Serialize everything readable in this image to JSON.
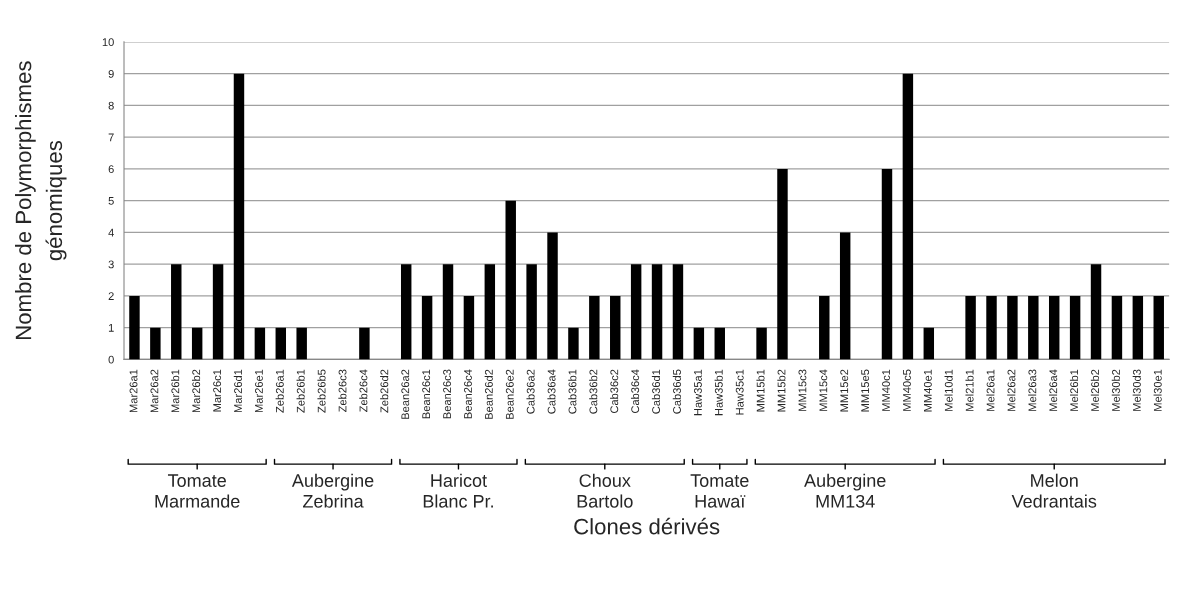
{
  "chart_data": {
    "type": "bar",
    "xlabel": "Clones dérivés",
    "ylabel": "Nombre de Polymorphismes\ngénomiques",
    "categories": [
      "Mar26a1",
      "Mar26a2",
      "Mar26b1",
      "Mar26b2",
      "Mar26c1",
      "Mar26d1",
      "Mar26e1",
      "Zeb26a1",
      "Zeb26b1",
      "Zeb26b5",
      "Zeb26c3",
      "Zeb26c4",
      "Zeb26d2",
      "Bean26a2",
      "Bean26c1",
      "Bean26c3",
      "Bean26c4",
      "Bean26d2",
      "Bean26e2",
      "Cab36a2",
      "Cab36a4",
      "Cab36b1",
      "Cab36b2",
      "Cab36c2",
      "Cab36c4",
      "Cab36d1",
      "Cab36d5",
      "Haw35a1",
      "Haw35b1",
      "Haw35c1",
      "MM15b1",
      "MM15b2",
      "MM15c3",
      "MM15c4",
      "MM15e2",
      "MM15e5",
      "MM40c1",
      "MM40c5",
      "MM40e1",
      "Mel10d1",
      "Mel21b1",
      "Mel26a1",
      "Mel26a2",
      "Mel26a3",
      "Mel26a4",
      "Mel26b1",
      "Mel26b2",
      "Mel30b2",
      "Mel30d3",
      "Mel30e1"
    ],
    "values": [
      2,
      1,
      3,
      1,
      3,
      9,
      1,
      1,
      1,
      0,
      0,
      1,
      0,
      3,
      2,
      3,
      2,
      3,
      5,
      3,
      4,
      1,
      2,
      2,
      3,
      3,
      3,
      1,
      1,
      0,
      1,
      6,
      0,
      2,
      4,
      0,
      6,
      9,
      1,
      0,
      2,
      2,
      2,
      2,
      2,
      2,
      3,
      2,
      2,
      2
    ],
    "color": "#000000",
    "ylim": [
      0,
      10
    ],
    "yticks": [
      0,
      1,
      2,
      3,
      4,
      5,
      6,
      7,
      8,
      9,
      10
    ],
    "grid": "y",
    "legend": false,
    "annotations": [
      "Tomate\nMarmande",
      "Aubergine\nZebrina",
      "Haricot\nBlanc Pr.",
      "Choux\nBartolo",
      "Tomate\nHawaï",
      "Aubergine\nMM134",
      "Melon\nVedrantais"
    ]
  }
}
